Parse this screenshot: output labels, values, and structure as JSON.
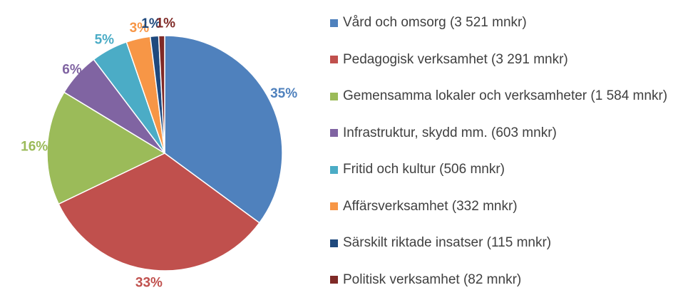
{
  "chart_data": {
    "type": "pie",
    "title": "",
    "categories": [
      "Vård och omsorg (3 521 mnkr)",
      "Pedagogisk verksamhet (3 291 mnkr)",
      "Gemensamma lokaler och verksamheter (1 584 mnkr)",
      "Infrastruktur, skydd mm. (603 mnkr)",
      "Fritid och kultur (506 mnkr)",
      "Affärsverksamhet (332 mnkr)",
      "Särskilt riktade insatser (115 mnkr)",
      "Politisk verksamhet (82 mnkr)"
    ],
    "values": [
      3521,
      3291,
      1584,
      603,
      506,
      332,
      115,
      82
    ],
    "percent_labels": [
      "35%",
      "33%",
      "16%",
      "6%",
      "5%",
      "3%",
      "1%",
      "1%"
    ],
    "colors": [
      "#4F81BD",
      "#C0504D",
      "#9BBB59",
      "#8064A2",
      "#4BACC6",
      "#F79646",
      "#1F497D",
      "#7F2A27"
    ],
    "legend_position": "right"
  }
}
